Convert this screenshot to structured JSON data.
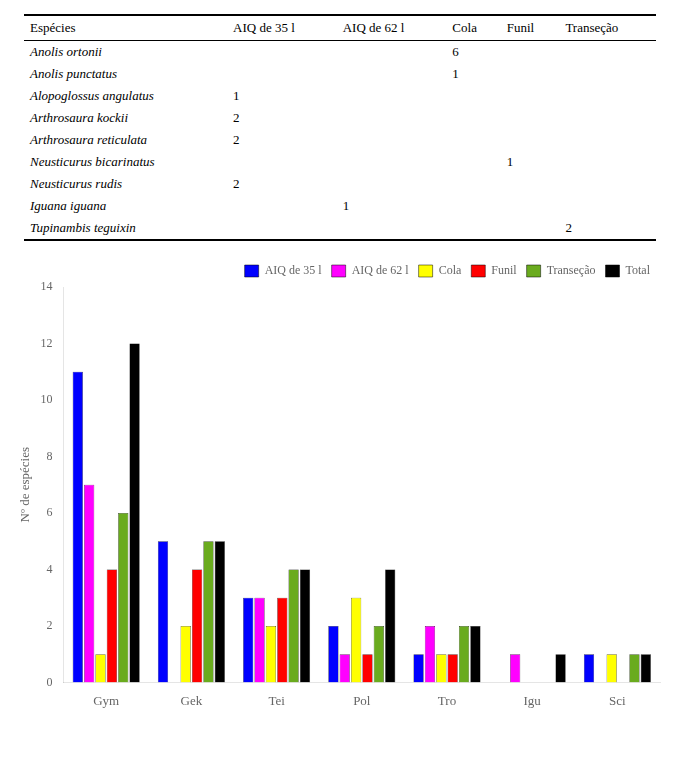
{
  "chart_data": [
    {
      "type": "table",
      "columns": [
        "Espécies",
        "AIQ de 35 l",
        "AIQ de 62 l",
        "Cola",
        "Funil",
        "Transeção"
      ],
      "rows": [
        [
          "Anolis ortonii",
          null,
          null,
          "6",
          null,
          null
        ],
        [
          "Anolis punctatus",
          null,
          null,
          "1",
          null,
          null
        ],
        [
          "Alopoglossus angulatus",
          "1",
          null,
          null,
          null,
          null
        ],
        [
          "Arthrosaura kockii",
          "2",
          null,
          null,
          null,
          null
        ],
        [
          "Arthrosaura reticulata",
          "2",
          null,
          null,
          null,
          null
        ],
        [
          "Neusticurus bicarinatus",
          null,
          null,
          null,
          "1",
          null
        ],
        [
          "Neusticurus rudis",
          "2",
          null,
          null,
          null,
          null
        ],
        [
          "Iguana iguana",
          null,
          "1",
          null,
          null,
          null
        ],
        [
          "Tupinambis teguixin",
          null,
          null,
          null,
          null,
          "2"
        ]
      ]
    },
    {
      "type": "bar",
      "y_label": "Nº de espécies",
      "categories": [
        "Gym",
        "Gek",
        "Tei",
        "Pol",
        "Tro",
        "Igu",
        "Sci"
      ],
      "series": [
        {
          "name": "AIQ de 35 l",
          "color": "#0000FF",
          "values": [
            11,
            5,
            3,
            2,
            1,
            0,
            1
          ]
        },
        {
          "name": "AIQ de 62 l",
          "color": "#FF00FF",
          "values": [
            7,
            0,
            3,
            1,
            2,
            1,
            0
          ]
        },
        {
          "name": "Cola",
          "color": "#FFFF00",
          "values": [
            1,
            2,
            2,
            3,
            1,
            0,
            1
          ]
        },
        {
          "name": "Funil",
          "color": "#FF0000",
          "values": [
            4,
            4,
            3,
            1,
            1,
            0,
            0
          ]
        },
        {
          "name": "Transeção",
          "color": "#6AAB1E",
          "values": [
            6,
            5,
            4,
            2,
            2,
            0,
            1
          ]
        },
        {
          "name": "Total",
          "color": "#000000",
          "values": [
            12,
            5,
            4,
            4,
            2,
            1,
            1
          ]
        }
      ],
      "ylim": [
        0,
        14
      ],
      "yticks": [
        0,
        2,
        4,
        6,
        8,
        10,
        12,
        14
      ],
      "grid": false,
      "legend": "upper right"
    }
  ]
}
